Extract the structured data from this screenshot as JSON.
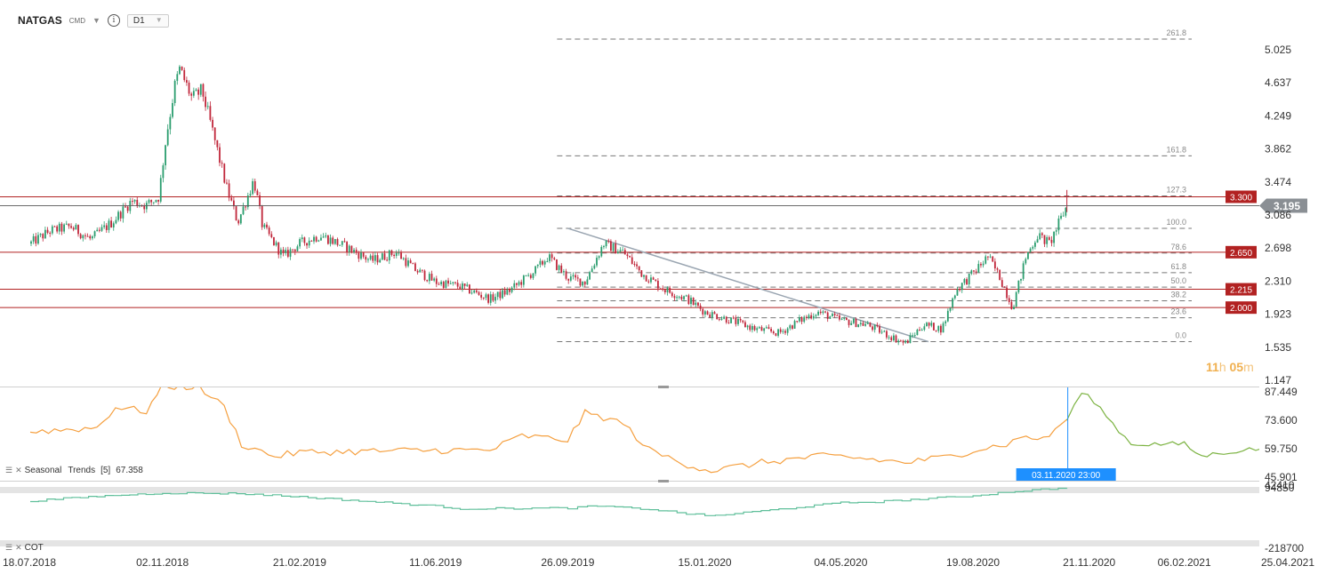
{
  "header": {
    "symbol": "NATGAS",
    "symbol_tag": "CMD",
    "timeframe": "D1",
    "caret": "▼",
    "info": "i"
  },
  "countdown": {
    "hours": "11",
    "h": "h",
    "minutes": "05",
    "m": "m"
  },
  "colors": {
    "up": "#2a9d6e",
    "down": "#c0263a",
    "level_line": "#b22222",
    "fib_line": "#777777",
    "trend_line": "#9aa5b1",
    "seasonal_hist": "#f5a040",
    "seasonal_fwd": "#7cb342",
    "cot": "#5fbf9a",
    "crosshair": "#1e90ff",
    "price_tag": "#8a8f94"
  },
  "chart_data": [
    {
      "type": "candlestick",
      "name": "NATGAS D1",
      "x_labels": [
        "18.07.2018",
        "02.11.2018",
        "21.02.2019",
        "11.06.2019",
        "26.09.2019",
        "15.01.2020",
        "04.05.2020",
        "19.08.2020",
        "21.11.2020",
        "06.02.2021",
        "25.04.2021"
      ],
      "y_ticks": [
        "5.025",
        "4.637",
        "4.249",
        "3.862",
        "3.474",
        "3.086",
        "2.698",
        "2.310",
        "1.923",
        "1.535",
        "1.147"
      ],
      "ylim": [
        1.147,
        5.2
      ],
      "last_price": "3.195",
      "close_path": [
        [
          "18.07.2018",
          2.75
        ],
        [
          "03.08.2018",
          2.9
        ],
        [
          "20.08.2018",
          2.95
        ],
        [
          "05.09.2018",
          2.8
        ],
        [
          "22.09.2018",
          3.0
        ],
        [
          "08.10.2018",
          3.25
        ],
        [
          "20.10.2018",
          3.2
        ],
        [
          "30.10.2018",
          3.3
        ],
        [
          "05.11.2018",
          4.0
        ],
        [
          "12.11.2018",
          4.6
        ],
        [
          "16.11.2018",
          4.8
        ],
        [
          "26.11.2018",
          4.45
        ],
        [
          "04.12.2018",
          4.55
        ],
        [
          "12.12.2018",
          4.1
        ],
        [
          "24.12.2018",
          3.4
        ],
        [
          "02.01.2019",
          3.0
        ],
        [
          "15.01.2019",
          3.5
        ],
        [
          "22.01.2019",
          2.95
        ],
        [
          "08.02.2019",
          2.6
        ],
        [
          "21.02.2019",
          2.75
        ],
        [
          "10.03.2019",
          2.85
        ],
        [
          "01.04.2019",
          2.7
        ],
        [
          "20.04.2019",
          2.55
        ],
        [
          "10.05.2019",
          2.65
        ],
        [
          "25.05.2019",
          2.45
        ],
        [
          "11.06.2019",
          2.3
        ],
        [
          "01.07.2019",
          2.25
        ],
        [
          "25.07.2019",
          2.1
        ],
        [
          "10.08.2019",
          2.2
        ],
        [
          "01.09.2019",
          2.45
        ],
        [
          "10.09.2019",
          2.6
        ],
        [
          "26.09.2019",
          2.35
        ],
        [
          "10.10.2019",
          2.3
        ],
        [
          "25.10.2019",
          2.75
        ],
        [
          "10.11.2019",
          2.65
        ],
        [
          "25.11.2019",
          2.4
        ],
        [
          "15.12.2019",
          2.2
        ],
        [
          "01.01.2020",
          2.1
        ],
        [
          "15.01.2020",
          1.95
        ],
        [
          "05.02.2020",
          1.85
        ],
        [
          "25.02.2020",
          1.75
        ],
        [
          "15.03.2020",
          1.7
        ],
        [
          "01.04.2020",
          1.85
        ],
        [
          "15.04.2020",
          1.95
        ],
        [
          "04.05.2020",
          1.85
        ],
        [
          "25.05.2020",
          1.8
        ],
        [
          "15.06.2020",
          1.65
        ],
        [
          "25.06.2020",
          1.58
        ],
        [
          "10.07.2020",
          1.8
        ],
        [
          "25.07.2020",
          1.75
        ],
        [
          "05.08.2020",
          2.2
        ],
        [
          "19.08.2020",
          2.4
        ],
        [
          "31.08.2020",
          2.6
        ],
        [
          "10.09.2020",
          2.35
        ],
        [
          "20.09.2020",
          2.0
        ],
        [
          "01.10.2020",
          2.6
        ],
        [
          "10.10.2020",
          2.85
        ],
        [
          "20.10.2020",
          2.75
        ],
        [
          "03.11.2020",
          3.195
        ]
      ],
      "levels": [
        {
          "value": 3.3,
          "label": "3.300"
        },
        {
          "value": 2.65,
          "label": "2.650"
        },
        {
          "value": 2.215,
          "label": "2.215"
        },
        {
          "value": 2.0,
          "label": "2.000"
        }
      ],
      "fibonacci": [
        {
          "label": "261.8",
          "value": 5.15
        },
        {
          "label": "161.8",
          "value": 3.78
        },
        {
          "label": "127.3",
          "value": 3.31
        },
        {
          "label": "100.0",
          "value": 2.93
        },
        {
          "label": "78.6",
          "value": 2.64
        },
        {
          "label": "61.8",
          "value": 2.41
        },
        {
          "label": "50.0",
          "value": 2.24
        },
        {
          "label": "38.2",
          "value": 2.08
        },
        {
          "label": "23.6",
          "value": 1.88
        },
        {
          "label": "0.0",
          "value": 1.6
        }
      ],
      "trendline": [
        [
          "26.09.2019",
          2.93
        ],
        [
          "14.07.2020",
          1.6
        ]
      ]
    },
    {
      "type": "line",
      "name": "Seasonal Trends",
      "label": "Seasonal",
      "label2": "Trends",
      "period": "[5]",
      "value_label": "67.358",
      "y_ticks": [
        "87.449",
        "73.600",
        "59.750",
        "45.901"
      ],
      "ylim": [
        45.901,
        87.449
      ],
      "crosshair_date": "03.11.2020 23:00",
      "history": [
        [
          "18.07.2018",
          68
        ],
        [
          "10.09.2018",
          70
        ],
        [
          "25.09.2018",
          80
        ],
        [
          "20.10.2018",
          78
        ],
        [
          "02.11.2018",
          90
        ],
        [
          "01.12.2018",
          90
        ],
        [
          "22.12.2018",
          80
        ],
        [
          "05.01.2019",
          62
        ],
        [
          "01.02.2019",
          56
        ],
        [
          "21.02.2019",
          58
        ],
        [
          "11.06.2019",
          59
        ],
        [
          "25.07.2019",
          59
        ],
        [
          "20.08.2019",
          66
        ],
        [
          "26.09.2019",
          64
        ],
        [
          "10.10.2019",
          77
        ],
        [
          "25.10.2019",
          75
        ],
        [
          "10.11.2019",
          72
        ],
        [
          "01.12.2019",
          59
        ],
        [
          "01.01.2020",
          52
        ],
        [
          "20.01.2020",
          49
        ],
        [
          "01.03.2020",
          53
        ],
        [
          "15.04.2020",
          56
        ],
        [
          "04.05.2020",
          56
        ],
        [
          "25.06.2020",
          53
        ],
        [
          "01.08.2020",
          56
        ],
        [
          "19.08.2020",
          59
        ],
        [
          "15.09.2020",
          62
        ],
        [
          "01.10.2020",
          66
        ],
        [
          "15.10.2020",
          64
        ],
        [
          "03.11.2020",
          74
        ]
      ],
      "forecast": [
        [
          "03.11.2020",
          74
        ],
        [
          "15.11.2020",
          87
        ],
        [
          "25.11.2020",
          83
        ],
        [
          "10.12.2020",
          72
        ],
        [
          "25.12.2020",
          62
        ],
        [
          "06.02.2021",
          62
        ],
        [
          "20.02.2021",
          56
        ],
        [
          "10.03.2021",
          58
        ],
        [
          "10.04.2021",
          60
        ],
        [
          "25.04.2021",
          60
        ]
      ]
    },
    {
      "type": "area",
      "name": "COT",
      "label": "COT",
      "y_ticks": [
        "-218700"
      ],
      "y_top_labels": [
        "94850",
        "42410"
      ],
      "ylim": [
        -218700,
        94850
      ],
      "values": [
        [
          "18.07.2018",
          20000
        ],
        [
          "10.09.2018",
          45000
        ],
        [
          "02.11.2018",
          62000
        ],
        [
          "01.01.2019",
          60000
        ],
        [
          "21.02.2019",
          42000
        ],
        [
          "11.06.2019",
          -8000
        ],
        [
          "01.07.2019",
          -22000
        ],
        [
          "26.09.2019",
          -18000
        ],
        [
          "20.10.2019",
          -8000
        ],
        [
          "01.12.2019",
          -25000
        ],
        [
          "15.01.2020",
          -60000
        ],
        [
          "01.02.2020",
          -52000
        ],
        [
          "04.05.2020",
          10000
        ],
        [
          "01.06.2020",
          15000
        ],
        [
          "19.08.2020",
          48000
        ],
        [
          "15.09.2020",
          68000
        ],
        [
          "20.10.2020",
          85000
        ],
        [
          "03.11.2020",
          88000
        ]
      ]
    }
  ]
}
